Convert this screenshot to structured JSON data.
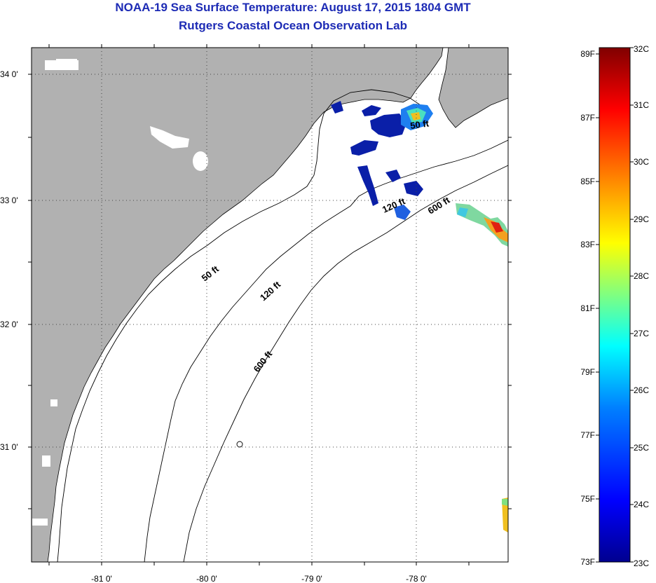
{
  "title": {
    "line1": "NOAA-19 Sea Surface Temperature:  August 17, 2015 1804 GMT",
    "line2": "Rutgers Coastal Ocean Observation Lab"
  },
  "map": {
    "lat_labels": [
      "34 0'",
      "33 0'",
      "32 0'",
      "31 0'"
    ],
    "lon_labels": [
      "-81 0'",
      "-80 0'",
      "-79 0'",
      "-78 0'"
    ],
    "contour_labels": {
      "c50_north": "50 ft",
      "c50_south": "50 ft",
      "c120_north": "120 ft",
      "c120_south": "120 ft",
      "c600_north": "600 ft",
      "c600_south": "600 ft"
    },
    "colors": {
      "land": "#b1b1b1",
      "ocean": "#ffffff",
      "cloud": "#ffffff",
      "cold_patch": "#0a1fa8"
    }
  },
  "colorbar": {
    "fahrenheit_labels": [
      "89F",
      "87F",
      "85F",
      "83F",
      "81F",
      "79F",
      "77F",
      "75F",
      "73F"
    ],
    "celsius_labels": [
      "32C",
      "31C",
      "30C",
      "29C",
      "28C",
      "27C",
      "26C",
      "25C",
      "24C",
      "23C"
    ],
    "min_c": 23,
    "max_c": 32,
    "palette": [
      "#00008f",
      "#0000ff",
      "#0080ff",
      "#00ffff",
      "#80ff80",
      "#ffff00",
      "#ff8000",
      "#ff0000",
      "#800000"
    ]
  }
}
